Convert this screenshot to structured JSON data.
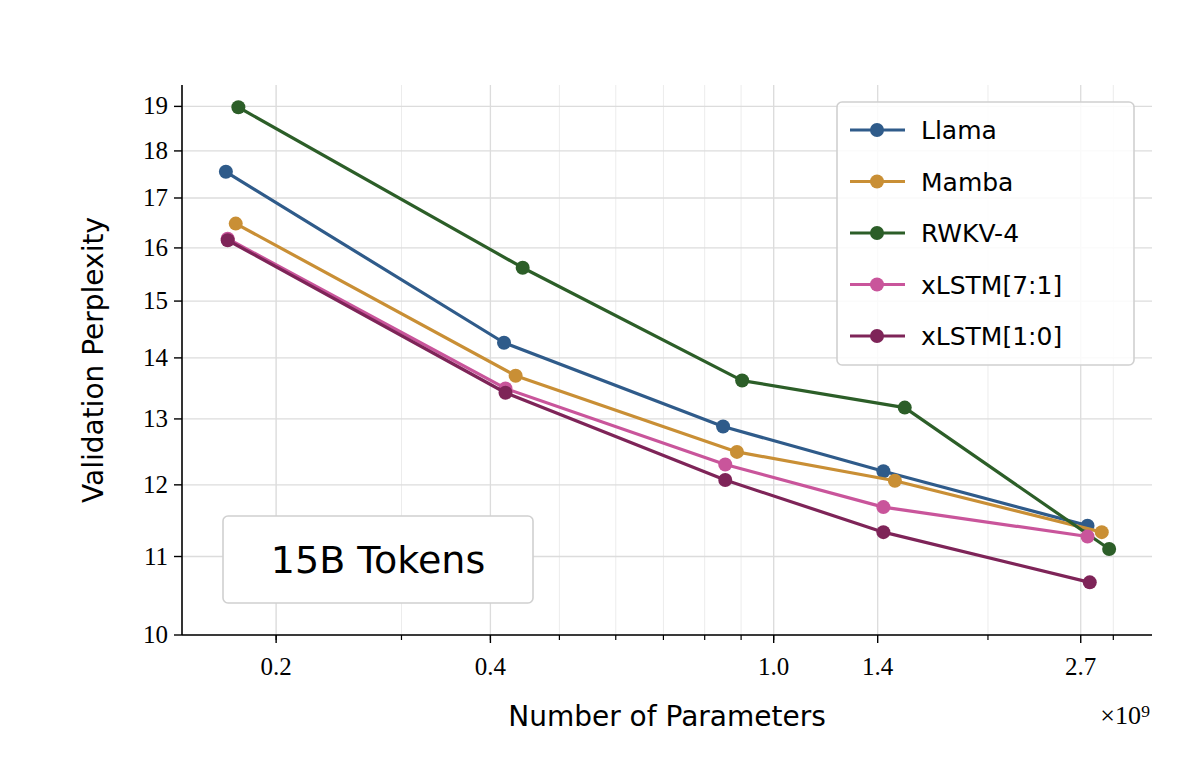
{
  "chart_data": {
    "type": "line",
    "x_label": "Number of Parameters",
    "y_label": "Validation Perplexity",
    "annotation": "15B Tokens",
    "x_multiplier": "×10⁹",
    "log": true,
    "grid": true,
    "legend": "upper right",
    "marker": "circle",
    "xlim": [
      0.1475,
      3.4
    ],
    "ylim": [
      10,
      19.5
    ],
    "xticks": [
      0.2,
      0.4,
      {
        "value": 1,
        "label": "1.0"
      },
      1.4,
      2.7
    ],
    "yticks": [
      10,
      11,
      12,
      13,
      14,
      15,
      16,
      17,
      18,
      19
    ],
    "series": [
      {
        "name": "Llama",
        "color": "#2f5b8a",
        "x": [
          0.17,
          0.418,
          0.849,
          1.426,
          2.76
        ],
        "values": [
          17.55,
          14.26,
          12.88,
          12.2,
          11.42
        ]
      },
      {
        "name": "Mamba",
        "color": "#c98f35",
        "x": [
          0.1755,
          0.434,
          0.888,
          1.48,
          2.89
        ],
        "values": [
          16.48,
          13.7,
          12.49,
          12.06,
          11.33
        ]
      },
      {
        "name": "RWKV-4",
        "color": "#2c5e28",
        "x": [
          0.177,
          0.444,
          0.903,
          1.528,
          2.96
        ],
        "values": [
          18.98,
          15.62,
          13.62,
          13.18,
          11.1
        ]
      },
      {
        "name": "xLSTM[7:1]",
        "color": "#c9559b",
        "x": [
          0.171,
          0.42,
          0.855,
          1.426,
          2.76
        ],
        "values": [
          16.18,
          13.49,
          12.3,
          11.68,
          11.27
        ]
      },
      {
        "name": "xLSTM[1:0]",
        "color": "#7e2458",
        "x": [
          0.171,
          0.42,
          0.855,
          1.426,
          2.78
        ],
        "values": [
          16.15,
          13.42,
          12.07,
          11.33,
          10.66
        ]
      }
    ]
  }
}
